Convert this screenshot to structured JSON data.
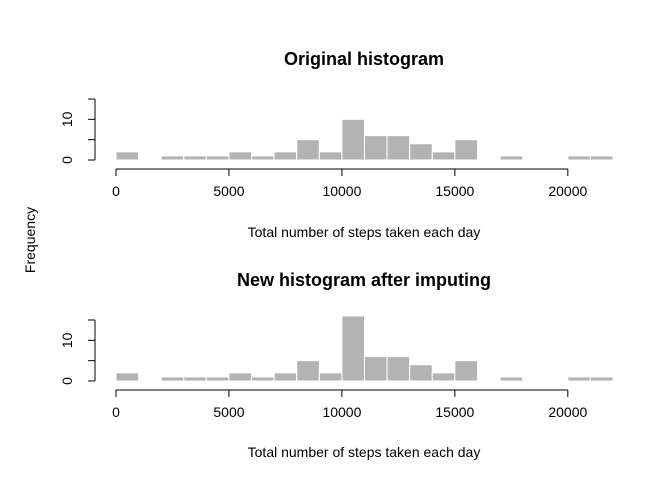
{
  "figure": {
    "shared_ylabel": "Frequency",
    "bar_color": "#b3b3b3",
    "bar_edge_color": "#ffffff"
  },
  "chart_data": [
    {
      "type": "bar",
      "title": "Original histogram",
      "xlabel": "Total number of steps taken each day",
      "ylabel": "Frequency",
      "bin_edges": [
        0,
        1000,
        2000,
        3000,
        4000,
        5000,
        6000,
        7000,
        8000,
        9000,
        10000,
        11000,
        12000,
        13000,
        14000,
        15000,
        16000,
        17000,
        18000,
        19000,
        20000,
        21000,
        22000
      ],
      "values": [
        2,
        0,
        1,
        1,
        1,
        2,
        1,
        2,
        5,
        2,
        10,
        6,
        6,
        4,
        2,
        5,
        0,
        1,
        0,
        0,
        1,
        1
      ],
      "xlim": [
        0,
        22000
      ],
      "ylim": [
        0,
        15
      ],
      "xticks": [
        0,
        5000,
        10000,
        15000,
        20000
      ],
      "xtick_labels": [
        "0",
        "5000",
        "10000",
        "15000",
        "20000"
      ],
      "yticks": [
        0,
        5,
        10,
        15
      ],
      "ytick_labels": [
        "0",
        "10"
      ],
      "ytick_label_values": [
        0,
        10
      ],
      "grid": false
    },
    {
      "type": "bar",
      "title": "New histogram after imputing",
      "xlabel": "Total number of steps taken each day",
      "ylabel": "Frequency",
      "bin_edges": [
        0,
        1000,
        2000,
        3000,
        4000,
        5000,
        6000,
        7000,
        8000,
        9000,
        10000,
        11000,
        12000,
        13000,
        14000,
        15000,
        16000,
        17000,
        18000,
        19000,
        20000,
        21000,
        22000
      ],
      "values": [
        2,
        0,
        1,
        1,
        1,
        2,
        1,
        2,
        5,
        2,
        16,
        6,
        6,
        4,
        2,
        5,
        0,
        1,
        0,
        0,
        1,
        1
      ],
      "xlim": [
        0,
        22000
      ],
      "ylim": [
        0,
        15
      ],
      "xticks": [
        0,
        5000,
        10000,
        15000,
        20000
      ],
      "xtick_labels": [
        "0",
        "5000",
        "10000",
        "15000",
        "20000"
      ],
      "yticks": [
        0,
        5,
        10,
        15
      ],
      "ytick_labels": [
        "0",
        "10"
      ],
      "ytick_label_values": [
        0,
        10
      ],
      "grid": false
    }
  ]
}
